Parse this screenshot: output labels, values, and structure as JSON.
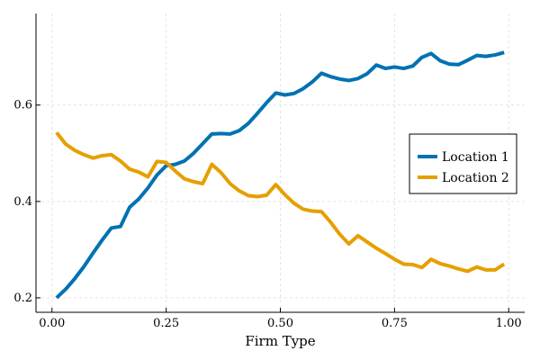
{
  "chart_data": {
    "type": "line",
    "title": "",
    "xlabel": "Firm Type",
    "ylabel": "",
    "xlim": [
      -0.035,
      1.035
    ],
    "ylim": [
      0.17,
      0.79
    ],
    "xticks": [
      0.0,
      0.25,
      0.5,
      0.75,
      1.0
    ],
    "xtick_labels": [
      "0.00",
      "0.25",
      "0.50",
      "0.75",
      "1.00"
    ],
    "yticks": [
      0.2,
      0.4,
      0.6
    ],
    "ytick_labels": [
      "0.2",
      "0.4",
      "0.6"
    ],
    "grid": true,
    "legend_position": "right",
    "x": [
      0.01,
      0.03,
      0.05,
      0.07,
      0.09,
      0.11,
      0.13,
      0.15,
      0.17,
      0.19,
      0.21,
      0.23,
      0.25,
      0.27,
      0.29,
      0.31,
      0.33,
      0.35,
      0.37,
      0.39,
      0.41,
      0.43,
      0.45,
      0.47,
      0.49,
      0.51,
      0.53,
      0.55,
      0.57,
      0.59,
      0.61,
      0.63,
      0.65,
      0.67,
      0.69,
      0.71,
      0.73,
      0.75,
      0.77,
      0.79,
      0.81,
      0.83,
      0.85,
      0.87,
      0.89,
      0.91,
      0.93,
      0.95,
      0.97,
      0.99
    ],
    "series": [
      {
        "name": "Location 1",
        "color": "#0072b2",
        "values": [
          0.2,
          0.218,
          0.24,
          0.265,
          0.293,
          0.32,
          0.345,
          0.348,
          0.388,
          0.405,
          0.428,
          0.455,
          0.474,
          0.477,
          0.484,
          0.5,
          0.52,
          0.54,
          0.541,
          0.54,
          0.547,
          0.562,
          0.583,
          0.605,
          0.625,
          0.621,
          0.624,
          0.634,
          0.648,
          0.666,
          0.659,
          0.654,
          0.651,
          0.655,
          0.665,
          0.683,
          0.676,
          0.679,
          0.676,
          0.681,
          0.699,
          0.707,
          0.692,
          0.685,
          0.684,
          0.693,
          0.703,
          0.701,
          0.704,
          0.709
        ]
      },
      {
        "name": "Location 2",
        "color": "#e69f00",
        "values": [
          0.543,
          0.519,
          0.506,
          0.497,
          0.49,
          0.495,
          0.497,
          0.484,
          0.467,
          0.461,
          0.451,
          0.483,
          0.481,
          0.463,
          0.447,
          0.441,
          0.437,
          0.477,
          0.46,
          0.437,
          0.422,
          0.412,
          0.41,
          0.413,
          0.435,
          0.414,
          0.396,
          0.384,
          0.38,
          0.379,
          0.357,
          0.332,
          0.312,
          0.329,
          0.316,
          0.303,
          0.292,
          0.28,
          0.27,
          0.269,
          0.263,
          0.28,
          0.271,
          0.266,
          0.26,
          0.255,
          0.264,
          0.258,
          0.258,
          0.27
        ]
      }
    ]
  }
}
